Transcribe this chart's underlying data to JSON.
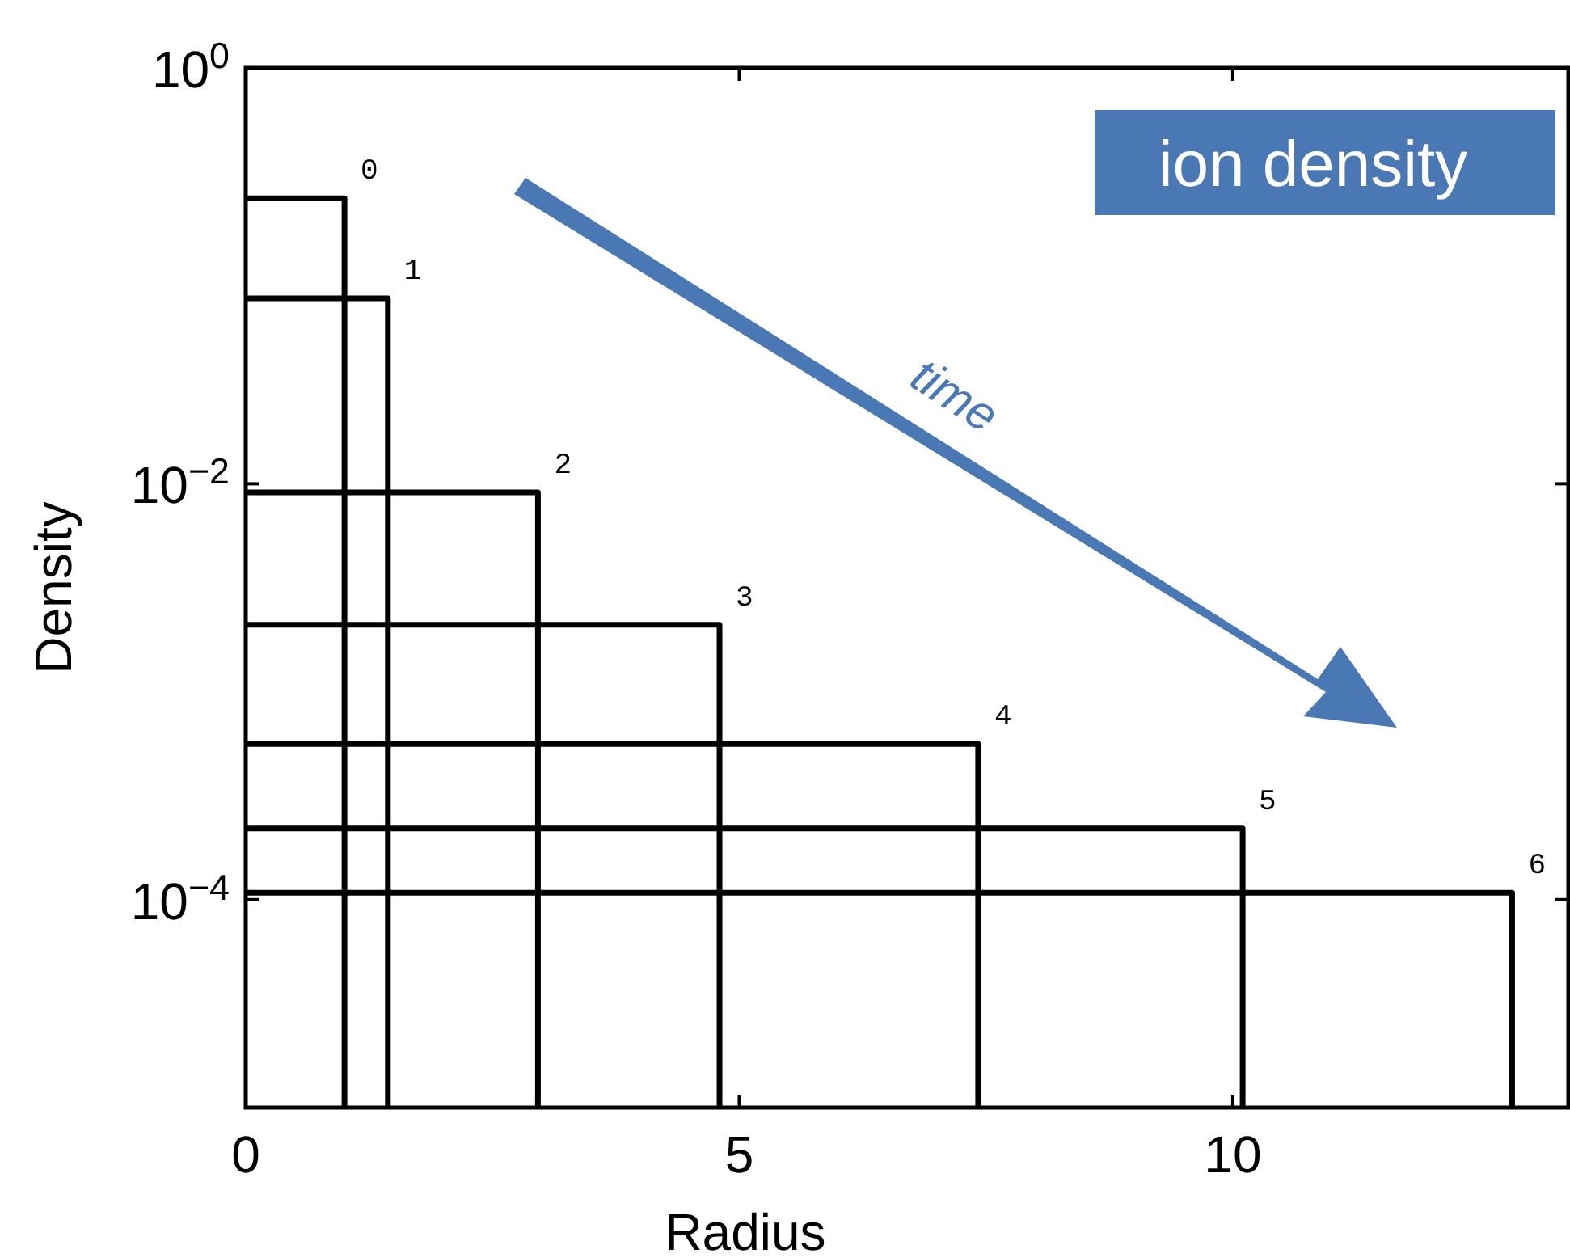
{
  "chart_data": {
    "type": "line",
    "xlabel": "Radius",
    "ylabel": "Density",
    "log": "y",
    "xlim": [
      0,
      13.4
    ],
    "xticks": [
      0,
      5,
      10
    ],
    "ylim": [
      1e-05,
      1
    ],
    "yticks": [
      {
        "value": 1,
        "label": "10$^{0}$"
      },
      {
        "value": 0.01,
        "label": "10$^{−2}$"
      },
      {
        "value": 0.0001,
        "label": "10$^{−4}$"
      }
    ],
    "grid": false,
    "marker": "none",
    "line_style": "solid",
    "series": [
      {
        "name": "0",
        "color": "#000000",
        "x": [
          0,
          1.0,
          1.0
        ],
        "values": [
          0.236,
          0.236,
          1e-05
        ]
      },
      {
        "name": "1",
        "color": "#000000",
        "x": [
          0,
          1.44,
          1.44
        ],
        "values": [
          0.078,
          0.078,
          1e-05
        ]
      },
      {
        "name": "2",
        "color": "#000000",
        "x": [
          0,
          2.96,
          2.96
        ],
        "values": [
          0.0091,
          0.0091,
          1e-05
        ]
      },
      {
        "name": "3",
        "color": "#000000",
        "x": [
          0,
          4.8,
          4.8
        ],
        "values": [
          0.0021,
          0.0021,
          1e-05
        ]
      },
      {
        "name": "4",
        "color": "#000000",
        "x": [
          0,
          7.42,
          7.42
        ],
        "values": [
          0.00056,
          0.00056,
          1e-05
        ]
      },
      {
        "name": "5",
        "color": "#000000",
        "x": [
          0,
          10.1,
          10.1
        ],
        "values": [
          0.00022,
          0.00022,
          1e-05
        ]
      },
      {
        "name": "6",
        "color": "#000000",
        "x": [
          0,
          12.83,
          12.83
        ],
        "values": [
          0.000108,
          0.000108,
          1e-05
        ]
      }
    ],
    "annotations": [
      "ion density",
      "time"
    ]
  }
}
